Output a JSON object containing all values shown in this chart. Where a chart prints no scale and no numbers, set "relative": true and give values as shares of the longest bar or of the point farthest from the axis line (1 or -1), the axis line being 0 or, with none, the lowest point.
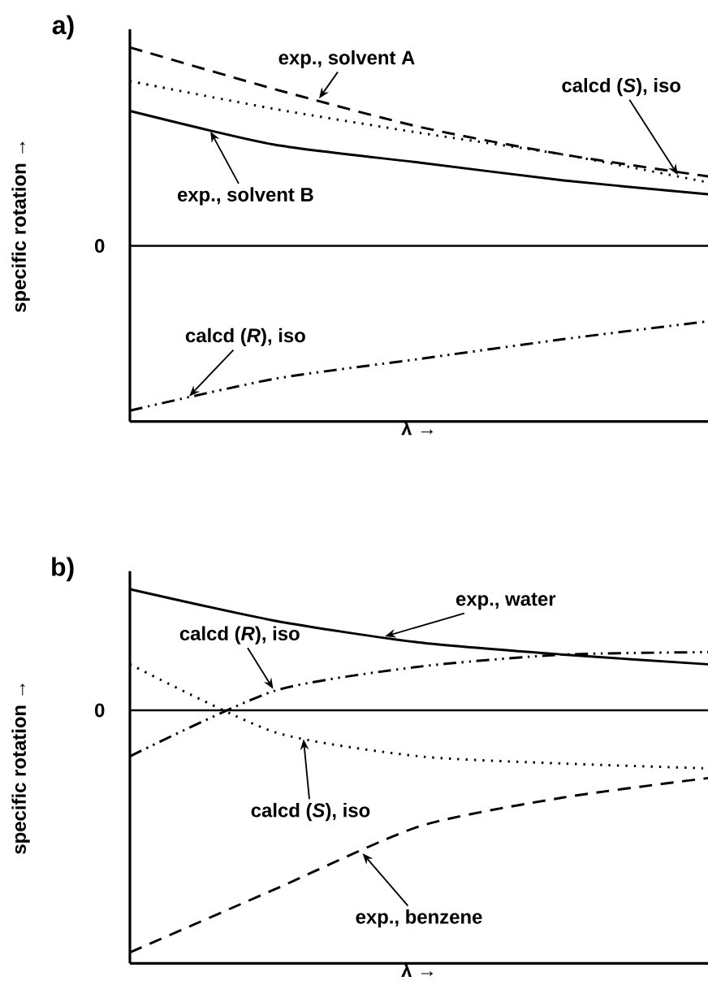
{
  "chart_data": [
    {
      "type": "line",
      "title": "a)",
      "xlabel": "λ →",
      "ylabel": "specific rotation →",
      "relative": true,
      "categories": [
        null,
        null,
        null,
        null,
        null
      ],
      "ref_lines": [
        {
          "axis": "y",
          "value": 0,
          "label": "0"
        }
      ],
      "series": [
        {
          "name": "exp., solvent A",
          "color": "#000000",
          "line_style": "dashed",
          "values": [
            1,
            0.79,
            0.6,
            0.46,
            0.35
          ]
        },
        {
          "name": "calcd (*S*), iso",
          "color": "#000000",
          "line_style": "dotted",
          "values": [
            0.83,
            0.69,
            0.57,
            0.46,
            0.32
          ]
        },
        {
          "name": "exp., solvent B",
          "color": "#000000",
          "line_style": "solid",
          "values": [
            0.68,
            0.51,
            0.42,
            0.33,
            0.26
          ]
        },
        {
          "name": "calcd (*R*), iso",
          "color": "#000000",
          "line_style": "dashdotdot",
          "values": [
            -0.83,
            -0.67,
            -0.57,
            -0.47,
            -0.38
          ]
        }
      ]
    },
    {
      "type": "line",
      "title": "b)",
      "xlabel": "λ →",
      "ylabel": "specific rotation →",
      "relative": true,
      "categories": [
        null,
        null,
        null,
        null,
        null
      ],
      "ref_lines": [
        {
          "axis": "y",
          "value": 0,
          "label": "0"
        }
      ],
      "series": [
        {
          "name": "exp., water",
          "color": "#000000",
          "line_style": "solid",
          "values": [
            0.5,
            0.37,
            0.28,
            0.23,
            0.19
          ]
        },
        {
          "name": "calcd (*R*), iso",
          "color": "#000000",
          "line_style": "dashdotdot",
          "values": [
            -0.19,
            0.08,
            0.18,
            0.23,
            0.24
          ]
        },
        {
          "name": "calcd (*S*), iso",
          "color": "#000000",
          "line_style": "dotted",
          "values": [
            0.19,
            -0.09,
            -0.19,
            -0.22,
            -0.24
          ]
        },
        {
          "name": "exp., benzene",
          "color": "#000000",
          "line_style": "dashed",
          "values": [
            -1,
            -0.74,
            -0.48,
            -0.36,
            -0.28
          ]
        }
      ]
    }
  ]
}
